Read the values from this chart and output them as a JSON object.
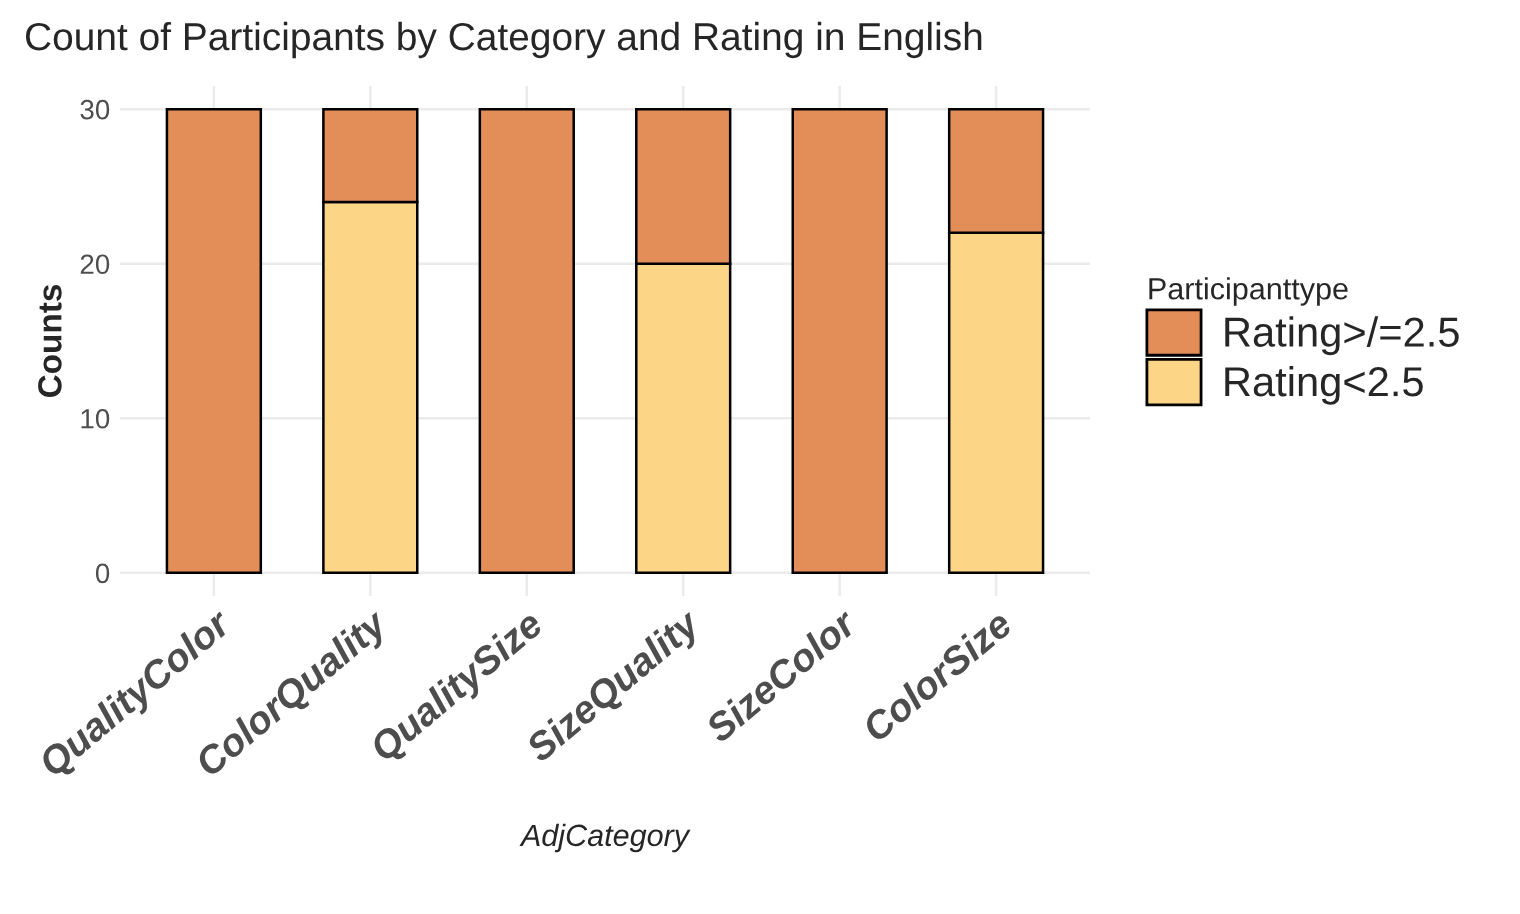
{
  "chart_data": {
    "type": "bar",
    "title": "Count of Participants by Category and Rating in English",
    "xlabel": "AdjCategory",
    "ylabel": "Counts",
    "legend_title": "Participanttype",
    "categories": [
      "QualityColor",
      "ColorQuality",
      "QualitySize",
      "SizeQuality",
      "SizeColor",
      "ColorSize"
    ],
    "series": [
      {
        "name": "Rating<2.5",
        "color": "#fdd586",
        "values": [
          0,
          24,
          0,
          20,
          0,
          22
        ]
      },
      {
        "name": "Rating>/=2.5",
        "color": "#e38d59",
        "values": [
          30,
          6,
          30,
          10,
          30,
          8
        ]
      }
    ],
    "stacked": true,
    "ylim": [
      -1.5,
      31.5
    ],
    "yticks": [
      0,
      10,
      20,
      30
    ],
    "grid": true,
    "legend": "right"
  }
}
